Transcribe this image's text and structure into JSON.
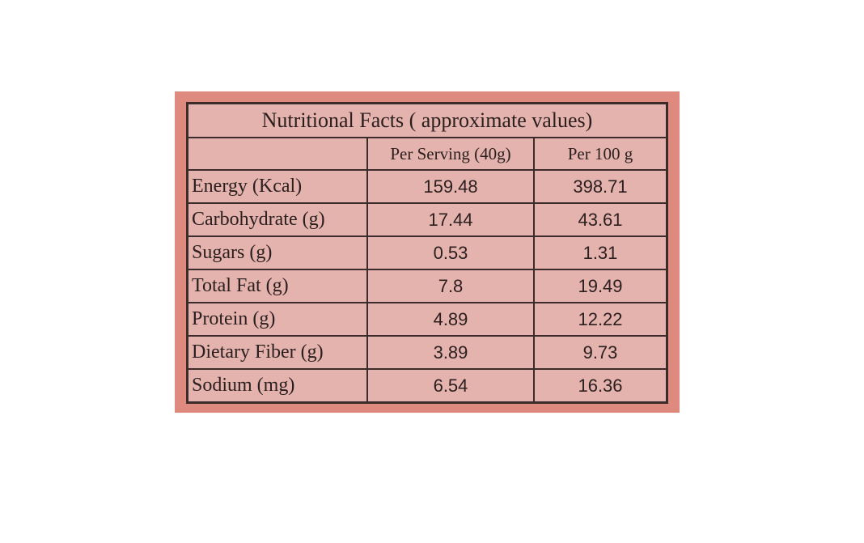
{
  "table": {
    "title": "Nutritional Facts ( approximate values)",
    "columns": [
      "Per Serving (40g)",
      "Per 100 g"
    ],
    "rows": [
      [
        "Energy (Kcal)",
        "159.48",
        "398.71"
      ],
      [
        "Carbohydrate (g)",
        "17.44",
        "43.61"
      ],
      [
        "Sugars (g)",
        "0.53",
        "1.31"
      ],
      [
        "Total Fat (g)",
        "7.8",
        "19.49"
      ],
      [
        "Protein (g)",
        "4.89",
        "12.22"
      ],
      [
        "Dietary Fiber (g)",
        "3.89",
        "9.73"
      ],
      [
        "Sodium (mg)",
        "6.54",
        "16.36"
      ]
    ]
  }
}
